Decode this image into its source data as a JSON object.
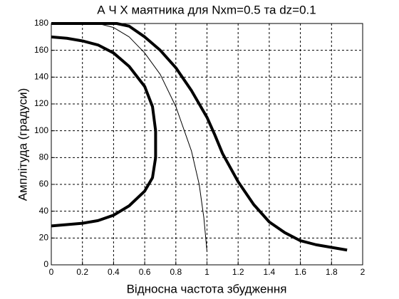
{
  "chart_data": {
    "type": "line",
    "title": "А Ч Х  маятника для  Nxm=0.5 та dz=0.1",
    "xlabel": "Відносна частота збудження",
    "ylabel": "Амплітуда  (градуси)",
    "xlim": [
      0,
      2
    ],
    "ylim": [
      0,
      180
    ],
    "xticks": [
      0,
      0.2,
      0.4,
      0.6,
      0.8,
      1,
      1.2,
      1.4,
      1.6,
      1.8,
      2
    ],
    "yticks": [
      0,
      20,
      40,
      60,
      80,
      100,
      120,
      140,
      160,
      180
    ],
    "grid": true,
    "series": [
      {
        "color": "#000000",
        "line_width": 4,
        "x": [
          0,
          0.2,
          0.3,
          0.4,
          0.5,
          0.6,
          0.65,
          0.67,
          0.67,
          0.65,
          0.6,
          0.5,
          0.4,
          0.3,
          0.2,
          0.1,
          0
        ],
        "values": [
          29,
          31,
          33,
          37,
          44,
          55,
          65,
          80,
          100,
          118,
          133,
          148,
          158,
          164,
          167,
          169,
          170
        ]
      },
      {
        "color": "#000000",
        "line_width": 4,
        "x": [
          0,
          0.42,
          0.5,
          0.6,
          0.7,
          0.8,
          0.9,
          1.0,
          1.05,
          1.1,
          1.2,
          1.3,
          1.4,
          1.5,
          1.6,
          1.7,
          1.8,
          1.9
        ],
        "values": [
          180,
          180,
          178,
          170,
          160,
          147,
          130,
          110,
          97,
          83,
          62,
          45,
          32,
          24,
          18,
          15,
          13,
          11
        ]
      },
      {
        "color": "#000000",
        "line_width": 1,
        "x": [
          0,
          0.3,
          0.4,
          0.5,
          0.6,
          0.7,
          0.8,
          0.9,
          0.95,
          0.98,
          1.0
        ],
        "values": [
          180,
          180,
          177,
          170,
          158,
          142,
          118,
          85,
          60,
          35,
          10
        ]
      }
    ]
  }
}
